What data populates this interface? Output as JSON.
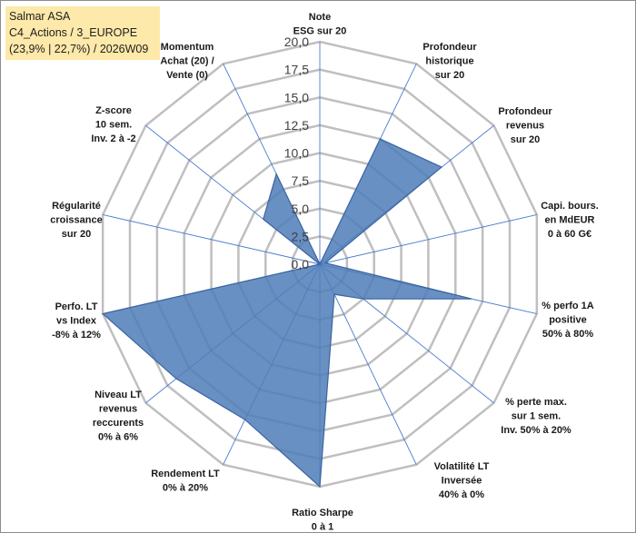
{
  "header": {
    "line1": "Salmar ASA",
    "line2": "C4_Actions / 3_EUROPE",
    "line3": "(23,9% | 22,7%) / 2026W09"
  },
  "colors": {
    "fill": "#4f7cb8",
    "edge": "#3a64a0",
    "grid": "#bfbfbf",
    "spoke": "#4a7ccf",
    "title_bg": "#fde9a9"
  },
  "chart_data": {
    "type": "radar",
    "range": [
      0,
      20
    ],
    "step": 2.5,
    "tick_labels": [
      "0,0",
      "2,5",
      "5,0",
      "7,5",
      "10,0",
      "12,5",
      "15,0",
      "17,5",
      "20,0"
    ],
    "axes": [
      {
        "lines": [
          "Note",
          "ESG sur 20"
        ]
      },
      {
        "lines": [
          "Profondeur",
          "historique",
          "sur 20"
        ]
      },
      {
        "lines": [
          "Profondeur",
          "revenus",
          "sur 20"
        ]
      },
      {
        "lines": [
          "Capi. bours.",
          "en MdEUR",
          "0 à 60 G€"
        ]
      },
      {
        "lines": [
          "% perfo 1A",
          "positive",
          "50% à 80%"
        ]
      },
      {
        "lines": [
          "% perte max.",
          "sur 1 sem.",
          "Inv. 50% à 20%"
        ]
      },
      {
        "lines": [
          "Volatilité LT",
          "Inversée",
          "40% à 0%"
        ]
      },
      {
        "lines": [
          "Ratio Sharpe",
          "0 à 1"
        ]
      },
      {
        "lines": [
          "Rendement LT",
          "0% à 20%"
        ]
      },
      {
        "lines": [
          "Niveau LT",
          "revenus",
          "reccurents",
          "0% à 6%"
        ]
      },
      {
        "lines": [
          "Perfo. LT",
          "vs Index",
          "-8% à 12%"
        ]
      },
      {
        "lines": [
          "Régularité",
          "croissance",
          "sur 20"
        ]
      },
      {
        "lines": [
          "Z-score",
          "10 sem.",
          "Inv. 2 à -2"
        ]
      },
      {
        "lines": [
          "Momentum",
          "Achat (20) /",
          "Vente (0)"
        ]
      }
    ],
    "series": [
      {
        "name": "Salmar ASA",
        "values": [
          0,
          12.5,
          14,
          0.5,
          14,
          5,
          3,
          20,
          15.5,
          16.5,
          20,
          0,
          6.5,
          9
        ]
      }
    ]
  }
}
